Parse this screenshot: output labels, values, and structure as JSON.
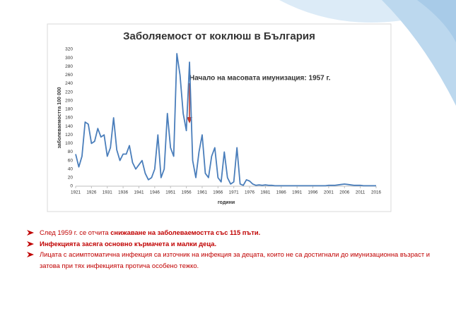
{
  "chart_data": {
    "type": "line",
    "title": "Заболяемост от коклюш в България",
    "y_label": "заболеваемостта 100 000",
    "x_label": "години",
    "annotation": "Начало на масовата имунизация: 1957 г.",
    "x": [
      1921,
      1922,
      1923,
      1924,
      1925,
      1926,
      1927,
      1928,
      1929,
      1930,
      1931,
      1932,
      1933,
      1934,
      1935,
      1936,
      1937,
      1938,
      1939,
      1940,
      1941,
      1942,
      1943,
      1944,
      1945,
      1946,
      1947,
      1948,
      1949,
      1950,
      1951,
      1952,
      1953,
      1954,
      1955,
      1956,
      1957,
      1958,
      1959,
      1960,
      1961,
      1962,
      1963,
      1964,
      1965,
      1966,
      1967,
      1968,
      1969,
      1970,
      1971,
      1972,
      1973,
      1974,
      1975,
      1976,
      1977,
      1978,
      1979,
      1980,
      1981,
      1982,
      1983,
      1984,
      1985,
      1986,
      1987,
      1988,
      1989,
      1990,
      1991,
      1992,
      1993,
      1994,
      1995,
      1996,
      1997,
      1998,
      1999,
      2000,
      2001,
      2002,
      2003,
      2004,
      2005,
      2006,
      2007,
      2008,
      2009,
      2010,
      2011,
      2012,
      2013,
      2014,
      2015,
      2016
    ],
    "values": [
      75,
      45,
      70,
      150,
      145,
      100,
      105,
      135,
      115,
      120,
      70,
      90,
      160,
      85,
      60,
      75,
      75,
      95,
      55,
      40,
      50,
      60,
      30,
      15,
      20,
      40,
      120,
      20,
      40,
      170,
      90,
      70,
      310,
      260,
      170,
      130,
      290,
      60,
      20,
      80,
      120,
      30,
      20,
      70,
      90,
      20,
      10,
      80,
      20,
      5,
      10,
      90,
      5,
      2,
      15,
      12,
      5,
      2,
      3,
      2,
      3,
      2,
      2,
      1,
      1,
      1,
      1,
      1,
      1,
      1,
      1,
      1,
      1,
      1,
      1,
      1,
      1,
      1,
      1,
      1,
      2,
      2,
      2,
      3,
      4,
      5,
      4,
      3,
      2,
      2,
      2,
      1,
      1,
      1,
      1,
      1
    ],
    "color": "#4a7ebb",
    "xlim": [
      1921,
      2016
    ],
    "xticks": [
      1921,
      1926,
      1931,
      1936,
      1941,
      1946,
      1951,
      1956,
      1961,
      1966,
      1971,
      1976,
      1981,
      1986,
      1991,
      1996,
      2001,
      2006,
      2011,
      2016
    ],
    "ylim": [
      0,
      320
    ],
    "yticks": [
      0,
      20,
      40,
      60,
      80,
      100,
      120,
      140,
      160,
      180,
      200,
      220,
      240,
      260,
      280,
      300,
      320
    ],
    "grid": false
  },
  "bullets": [
    {
      "text": "След 1959 г. се отчита ",
      "emphasis": "снижаване на заболеваемостта със 115 пъти."
    },
    {
      "emphasis": "Инфекцията засяга основно кърмачета и малки деца."
    },
    {
      "text": "Лицата с асимптоматична инфекция са източник на инфекция за децата, които не са достигнали до имунизационна възраст и затова при тях инфекцията протича особено тежко."
    }
  ]
}
